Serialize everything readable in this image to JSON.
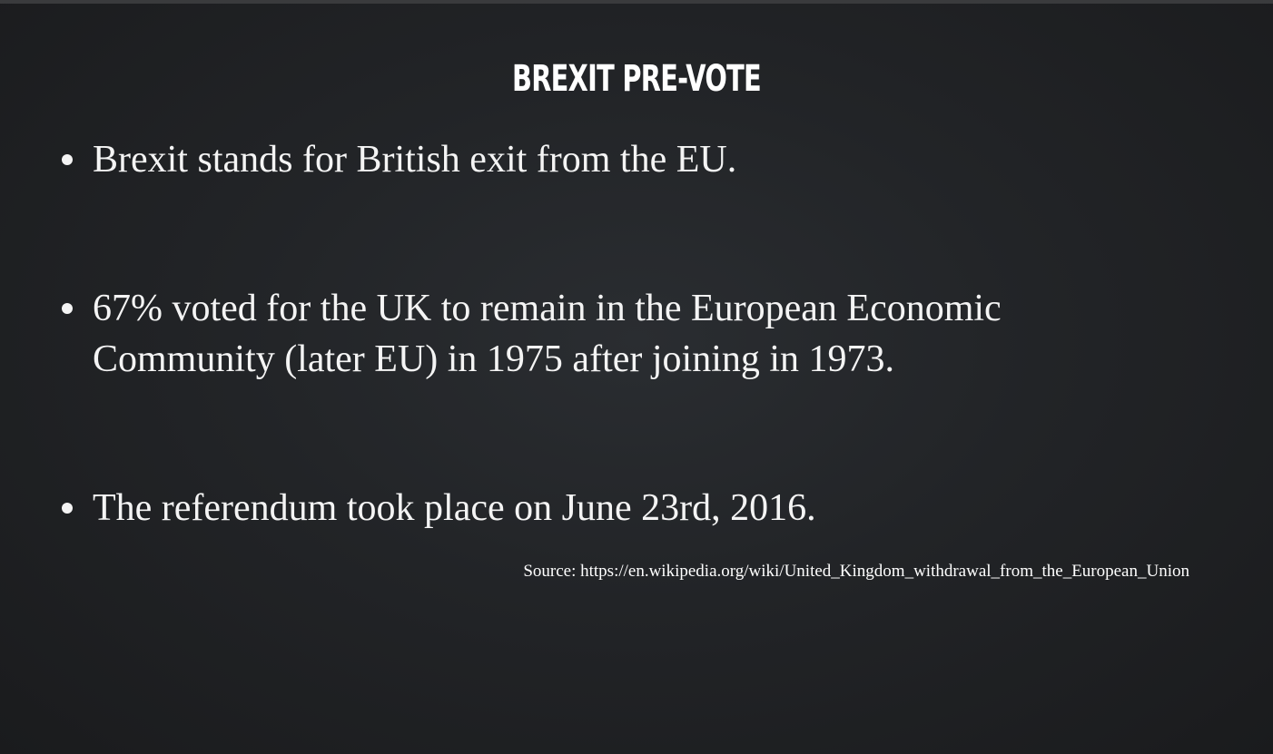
{
  "slide": {
    "title": "BREXIT PRE-VOTE",
    "bullets": [
      {
        "text": "Brexit stands for British exit from the EU."
      },
      {
        "text": "67% voted for the UK to remain in the European Economic Community (later EU) in 1975 after joining in 1973."
      },
      {
        "text": "The referendum took place on June 23rd, 2016."
      }
    ],
    "source": "Source: https://en.wikipedia.org/wiki/United_Kingdom_withdrawal_from_the_European_Union"
  },
  "colors": {
    "background": "#222427",
    "text": "#ffffff"
  }
}
